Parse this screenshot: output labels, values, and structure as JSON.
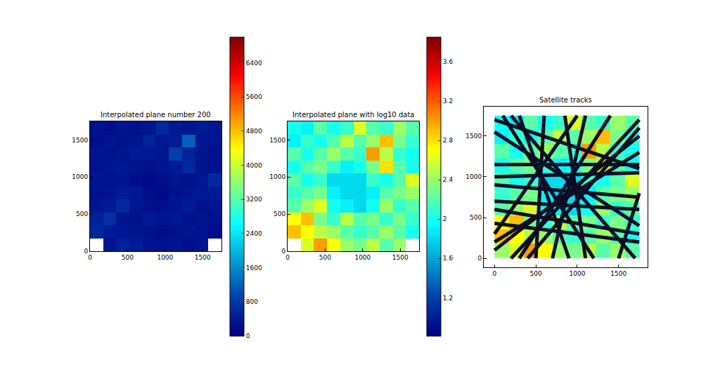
{
  "chart_data": [
    {
      "type": "heatmap",
      "title": "Interpolated plane number 200",
      "x": [
        87.5,
        262.5,
        437.5,
        612.5,
        787.5,
        962.5,
        1137.5,
        1312.5,
        1487.5,
        1662.5
      ],
      "y": [
        87.5,
        262.5,
        437.5,
        612.5,
        787.5,
        962.5,
        1137.5,
        1312.5,
        1487.5,
        1662.5
      ],
      "z": [
        [
          null,
          300,
          500,
          400,
          300,
          250,
          300,
          200,
          300,
          null
        ],
        [
          600,
          400,
          350,
          300,
          250,
          200,
          250,
          300,
          250,
          200
        ],
        [
          500,
          700,
          300,
          250,
          400,
          300,
          350,
          250,
          300,
          250
        ],
        [
          300,
          400,
          600,
          300,
          250,
          200,
          300,
          400,
          250,
          300
        ],
        [
          250,
          300,
          400,
          350,
          200,
          150,
          250,
          300,
          350,
          400
        ],
        [
          300,
          250,
          300,
          200,
          150,
          200,
          300,
          250,
          300,
          600
        ],
        [
          250,
          300,
          350,
          300,
          250,
          300,
          400,
          600,
          300,
          250
        ],
        [
          300,
          250,
          300,
          400,
          350,
          300,
          900,
          500,
          300,
          250
        ],
        [
          200,
          300,
          250,
          300,
          500,
          300,
          400,
          1200,
          350,
          300
        ],
        [
          250,
          200,
          300,
          250,
          300,
          600,
          350,
          300,
          400,
          300
        ]
      ],
      "xlim": [
        0,
        1750
      ],
      "ylim": [
        0,
        1750
      ],
      "xticks": [
        0,
        500,
        1000,
        1500
      ],
      "yticks": [
        0,
        500,
        1000,
        1500
      ],
      "colorbar": {
        "range": [
          0,
          7000
        ],
        "ticks": [
          0,
          800,
          1600,
          2400,
          3200,
          4000,
          4800,
          5600,
          6400
        ]
      }
    },
    {
      "type": "heatmap",
      "title": "Interpolated plane with log10 data",
      "x": [
        87.5,
        262.5,
        437.5,
        612.5,
        787.5,
        962.5,
        1137.5,
        1312.5,
        1487.5,
        1662.5
      ],
      "y": [
        87.5,
        262.5,
        437.5,
        612.5,
        787.5,
        962.5,
        1137.5,
        1312.5,
        1487.5,
        1662.5
      ],
      "z": [
        [
          null,
          2.6,
          3.0,
          2.7,
          2.4,
          2.3,
          2.5,
          2.2,
          2.4,
          null
        ],
        [
          2.9,
          2.7,
          2.5,
          2.4,
          2.2,
          2.1,
          2.2,
          2.4,
          2.2,
          2.0
        ],
        [
          2.7,
          2.9,
          2.3,
          2.1,
          2.5,
          2.2,
          2.3,
          2.1,
          2.3,
          2.1
        ],
        [
          2.2,
          2.4,
          2.6,
          2.0,
          1.9,
          1.8,
          2.0,
          2.4,
          2.1,
          2.2
        ],
        [
          2.1,
          2.2,
          2.3,
          1.9,
          1.8,
          1.8,
          1.9,
          2.2,
          2.3,
          2.4
        ],
        [
          2.2,
          2.0,
          2.1,
          1.8,
          1.8,
          1.8,
          2.1,
          2.0,
          2.2,
          2.6
        ],
        [
          2.0,
          2.2,
          2.3,
          2.1,
          1.9,
          2.0,
          2.3,
          2.8,
          2.2,
          2.0
        ],
        [
          2.2,
          2.0,
          2.2,
          2.4,
          2.2,
          2.1,
          3.0,
          2.5,
          2.1,
          2.0
        ],
        [
          1.9,
          2.1,
          2.0,
          2.2,
          2.5,
          2.2,
          2.4,
          2.9,
          2.3,
          2.1
        ],
        [
          2.0,
          1.9,
          2.2,
          2.0,
          2.1,
          2.6,
          2.2,
          2.1,
          2.4,
          2.2
        ]
      ],
      "xlim": [
        0,
        1750
      ],
      "ylim": [
        0,
        1750
      ],
      "xticks": [
        0,
        500,
        1000,
        1500
      ],
      "yticks": [
        0,
        500,
        1000,
        1500
      ],
      "colorbar": {
        "range": [
          0.81,
          3.85
        ],
        "ticks": [
          1.2,
          1.6,
          2.0,
          2.4,
          2.8,
          3.2,
          3.6
        ]
      }
    },
    {
      "type": "heatmap",
      "title": "Satellite tracks",
      "x": [
        87.5,
        262.5,
        437.5,
        612.5,
        787.5,
        962.5,
        1137.5,
        1312.5,
        1487.5,
        1662.5
      ],
      "y": [
        87.5,
        262.5,
        437.5,
        612.5,
        787.5,
        962.5,
        1137.5,
        1312.5,
        1487.5,
        1662.5
      ],
      "z": [
        [
          2.4,
          2.6,
          3.0,
          2.7,
          2.4,
          2.3,
          2.5,
          2.2,
          2.4,
          2.2
        ],
        [
          2.9,
          2.7,
          2.5,
          2.4,
          2.2,
          2.1,
          2.2,
          2.4,
          2.2,
          2.0
        ],
        [
          2.7,
          2.9,
          2.3,
          2.1,
          2.5,
          2.2,
          2.3,
          2.1,
          2.3,
          2.1
        ],
        [
          2.2,
          2.4,
          2.6,
          2.0,
          1.9,
          1.8,
          2.0,
          2.4,
          2.1,
          2.2
        ],
        [
          2.1,
          2.2,
          2.3,
          1.9,
          1.8,
          1.8,
          1.9,
          2.2,
          2.3,
          2.4
        ],
        [
          2.2,
          2.0,
          2.1,
          1.8,
          1.8,
          1.8,
          2.1,
          2.0,
          2.2,
          2.6
        ],
        [
          2.0,
          2.2,
          2.3,
          2.1,
          1.9,
          2.0,
          2.3,
          2.8,
          2.2,
          2.0
        ],
        [
          2.2,
          2.0,
          2.2,
          2.4,
          2.2,
          2.1,
          3.0,
          2.5,
          2.1,
          2.0
        ],
        [
          1.9,
          2.1,
          2.0,
          2.2,
          2.5,
          2.2,
          2.4,
          2.9,
          2.3,
          2.1
        ],
        [
          2.0,
          1.9,
          2.2,
          2.0,
          2.1,
          2.6,
          2.2,
          2.1,
          2.4,
          2.2
        ]
      ],
      "zlim": [
        0.81,
        3.85
      ],
      "xlim": [
        -130,
        1850
      ],
      "ylim": [
        -110,
        1860
      ],
      "xticks": [
        0,
        500,
        1000,
        1500
      ],
      "yticks": [
        0,
        500,
        1000,
        1500
      ],
      "series": [
        {
          "type": "line",
          "color": "#0d0d26",
          "x": [
            0,
            1750
          ],
          "y": [
            1700,
            1100
          ]
        },
        {
          "type": "line",
          "color": "#0d0d26",
          "x": [
            0,
            1750
          ],
          "y": [
            1550,
            400
          ]
        },
        {
          "type": "line",
          "color": "#0d0d26",
          "x": [
            0,
            1750
          ],
          "y": [
            1150,
            1150
          ]
        },
        {
          "type": "line",
          "color": "#0d0d26",
          "x": [
            0,
            1750
          ],
          "y": [
            1000,
            1050
          ]
        },
        {
          "type": "line",
          "color": "#0d0d26",
          "x": [
            0,
            1750
          ],
          "y": [
            900,
            750
          ]
        },
        {
          "type": "line",
          "color": "#0d0d26",
          "x": [
            0,
            1750
          ],
          "y": [
            700,
            600
          ]
        },
        {
          "type": "line",
          "color": "#0d0d26",
          "x": [
            0,
            1750
          ],
          "y": [
            600,
            300
          ]
        },
        {
          "type": "line",
          "color": "#0d0d26",
          "x": [
            0,
            1750
          ],
          "y": [
            430,
            200
          ]
        },
        {
          "type": "line",
          "color": "#0d0d26",
          "x": [
            100,
            1200
          ],
          "y": [
            1750,
            0
          ]
        },
        {
          "type": "line",
          "color": "#0d0d26",
          "x": [
            300,
            900
          ],
          "y": [
            1750,
            0
          ]
        },
        {
          "type": "line",
          "color": "#0d0d26",
          "x": [
            600,
            500
          ],
          "y": [
            1750,
            0
          ]
        },
        {
          "type": "line",
          "color": "#0d0d26",
          "x": [
            850,
            1100
          ],
          "y": [
            1750,
            0
          ]
        },
        {
          "type": "line",
          "color": "#0d0d26",
          "x": [
            1100,
            700
          ],
          "y": [
            1750,
            0
          ]
        },
        {
          "type": "line",
          "color": "#0d0d26",
          "x": [
            1400,
            300
          ],
          "y": [
            1750,
            0
          ]
        },
        {
          "type": "line",
          "color": "#0d0d26",
          "x": [
            1750,
            200
          ],
          "y": [
            1700,
            0
          ]
        },
        {
          "type": "line",
          "color": "#0d0d26",
          "x": [
            1750,
            0
          ],
          "y": [
            1500,
            100
          ]
        },
        {
          "type": "line",
          "color": "#0d0d26",
          "x": [
            1700,
            200
          ],
          "y": [
            0,
            1750
          ]
        },
        {
          "type": "line",
          "color": "#0d0d26",
          "x": [
            1500,
            1750
          ],
          "y": [
            0,
            800
          ]
        },
        {
          "type": "line",
          "color": "#0d0d26",
          "x": [
            0,
            1000
          ],
          "y": [
            300,
            1750
          ]
        },
        {
          "type": "line",
          "color": "#0d0d26",
          "x": [
            1750,
            0
          ],
          "y": [
            1300,
            200
          ]
        },
        {
          "type": "line",
          "color": "#0d0d26",
          "x": [
            400,
            1750
          ],
          "y": [
            0,
            1600
          ]
        }
      ]
    }
  ]
}
